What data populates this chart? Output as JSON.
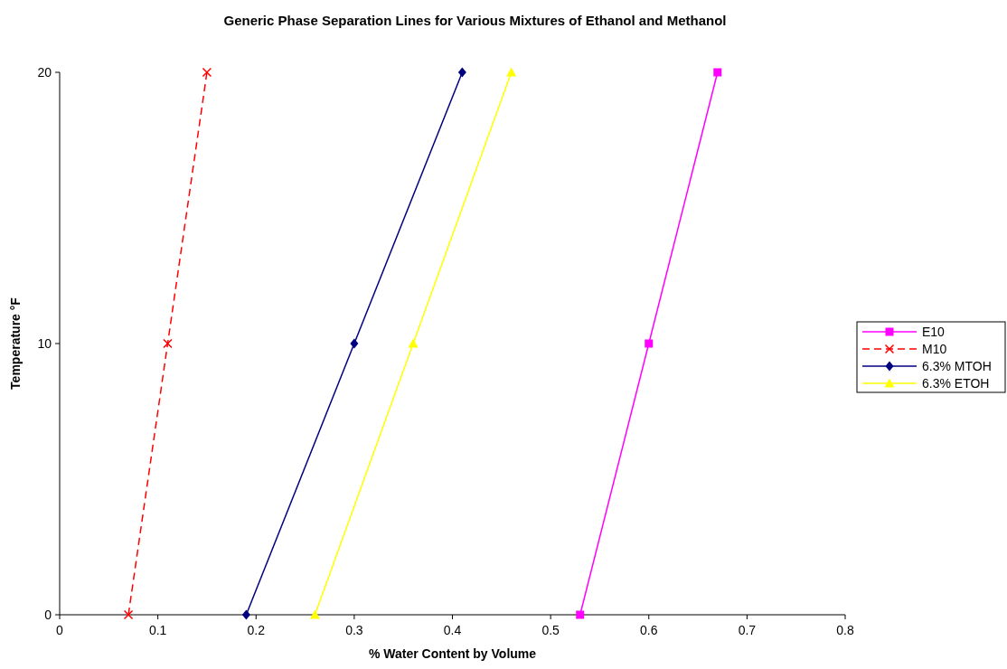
{
  "chart_data": {
    "type": "line",
    "title": "Generic Phase Separation Lines for Various Mixtures of Ethanol and Methanol",
    "xlabel": "% Water Content by Volume",
    "ylabel": "Temperature °F",
    "xlim": [
      0,
      0.8
    ],
    "xticks": [
      0,
      0.1,
      0.2,
      0.3,
      0.4,
      0.5,
      0.6,
      0.7,
      0.8
    ],
    "ylim": [
      0,
      20
    ],
    "yticks": [
      0,
      10,
      20
    ],
    "grid": false,
    "legend": "right",
    "series": [
      {
        "name": "E10",
        "color": "#ff00ff",
        "marker": "square",
        "line_style": "solid",
        "x": [
          0.53,
          0.6,
          0.67
        ],
        "values": [
          0,
          10,
          20
        ]
      },
      {
        "name": "M10",
        "color": "#ff0000",
        "marker": "cross",
        "line_style": "dashed",
        "x": [
          0.07,
          0.11,
          0.15
        ],
        "values": [
          0,
          10,
          20
        ]
      },
      {
        "name": "6.3% MTOH",
        "color": "#000080",
        "marker": "diamond",
        "line_style": "solid",
        "x": [
          0.19,
          0.3,
          0.41
        ],
        "values": [
          0,
          10,
          20
        ]
      },
      {
        "name": "6.3% ETOH",
        "color": "#ffff00",
        "marker": "triangle",
        "line_style": "solid",
        "x": [
          0.26,
          0.36,
          0.46
        ],
        "values": [
          0,
          10,
          20
        ]
      }
    ]
  }
}
